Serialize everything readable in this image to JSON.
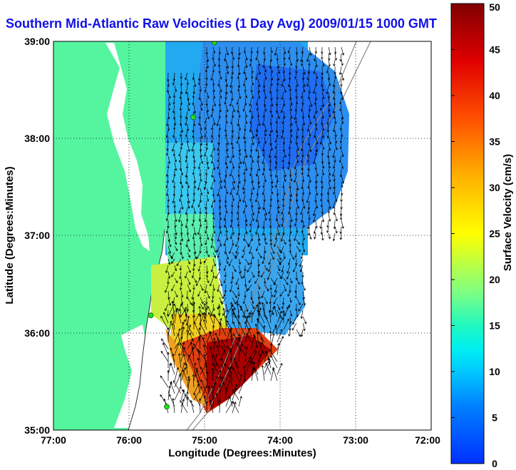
{
  "title": "Southern Mid-Atlantic Raw Velocities (1 Day Avg) 2009/01/15 1000 GMT",
  "xaxis": {
    "label": "Longitude (Degrees:Minutes)",
    "ticks": [
      "77:00",
      "76:00",
      "75:00",
      "74:00",
      "73:00",
      "72:00"
    ],
    "range": [
      -77,
      -72
    ]
  },
  "yaxis": {
    "label": "Latitude (Degrees:Minutes)",
    "ticks": [
      "39:00",
      "38:00",
      "37:00",
      "36:00",
      "35:00"
    ],
    "range": [
      35,
      39
    ]
  },
  "colorbar": {
    "label": "Surface Velocity (cm/s)",
    "ticks": [
      "50",
      "45",
      "40",
      "35",
      "30",
      "25",
      "20",
      "15",
      "10",
      "5",
      "0"
    ],
    "range": [
      0,
      50
    ]
  },
  "colors": {
    "land": "#55f5a0",
    "title": "#1010e6",
    "station": "#22dd22",
    "bathymetry": "#888888"
  },
  "grid": "dotted",
  "stations": [
    {
      "lon": -74.87,
      "lat": 38.99
    },
    {
      "lon": -75.15,
      "lat": 38.22
    },
    {
      "lon": -75.71,
      "lat": 36.18
    },
    {
      "lon": -75.5,
      "lat": 35.24
    }
  ]
}
